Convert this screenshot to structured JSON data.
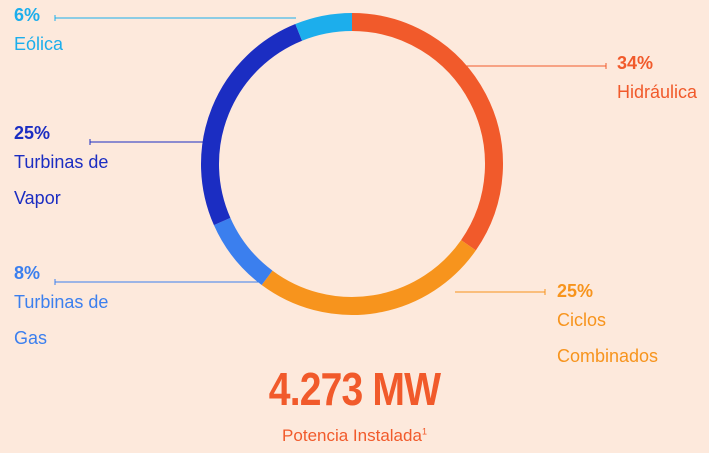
{
  "chart_data": {
    "type": "donut",
    "categories": [
      "Hidráulica",
      "Ciclos Combinados",
      "Turbinas de Gas",
      "Turbinas de Vapor",
      "Eólica"
    ],
    "values": [
      34,
      25,
      8,
      25,
      6
    ],
    "value_labels": [
      "34%",
      "25%",
      "8%",
      "25%",
      "6%"
    ],
    "colors": [
      "#f15a2b",
      "#f7941d",
      "#3b7fee",
      "#1b2dc2",
      "#1caeec"
    ],
    "total": "4.273 MW",
    "total_caption": "Potencia Instalada",
    "footnote": "1"
  }
}
